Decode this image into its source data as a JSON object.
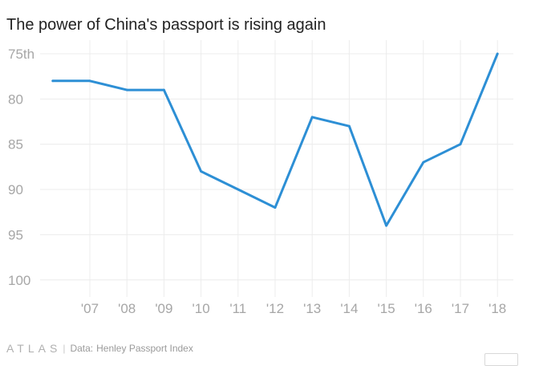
{
  "chart_data": {
    "type": "line",
    "title": "The power of China's passport is rising again",
    "x": [
      2006,
      2007,
      2008,
      2009,
      2010,
      2011,
      2012,
      2013,
      2014,
      2015,
      2016,
      2017,
      2018
    ],
    "x_tick_values": [
      2007,
      2008,
      2009,
      2010,
      2011,
      2012,
      2013,
      2014,
      2015,
      2016,
      2017,
      2018
    ],
    "x_tick_labels": [
      "'07",
      "'08",
      "'09",
      "'10",
      "'11",
      "'12",
      "'13",
      "'14",
      "'15",
      "'16",
      "'17",
      "'18"
    ],
    "series": [
      {
        "values": [
          78,
          78,
          79,
          79,
          88,
          90,
          92,
          82,
          83,
          94,
          87,
          85,
          75
        ]
      }
    ],
    "y_tick_values": [
      75,
      80,
      85,
      90,
      95,
      100
    ],
    "y_tick_labels": [
      "75th",
      "80",
      "85",
      "90",
      "95",
      "100"
    ],
    "ylim": [
      75,
      100
    ],
    "y_inverted": true,
    "grid": true,
    "line_color": "#2d8fd5",
    "grid_color": "#ececec",
    "tick_color": "#a6a6a6"
  },
  "footer": {
    "brand": "ATLAS",
    "separator": "|",
    "source_label": "Data:",
    "source": "Henley Passport Index"
  }
}
